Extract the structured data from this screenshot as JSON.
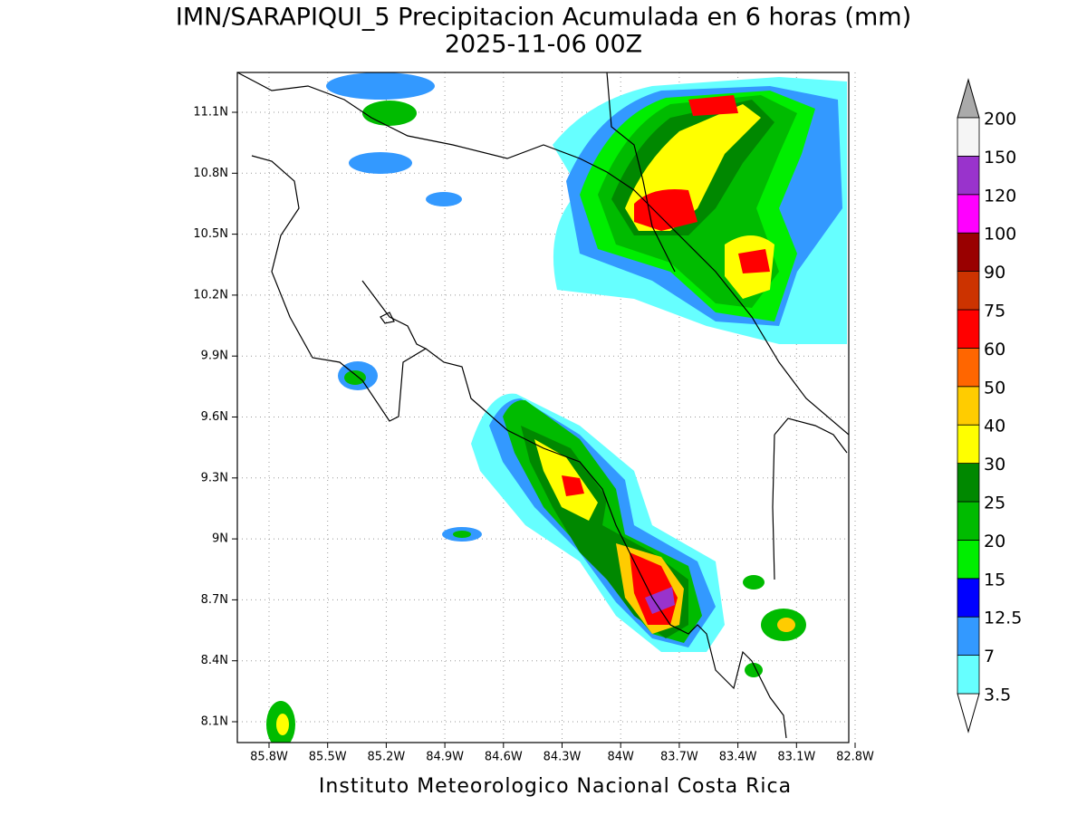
{
  "header": {
    "title": "IMN/SARAPIQUI_5 Precipitacion Acumulada en 6 horas (mm)",
    "subtitle": "2025-11-06 00Z"
  },
  "map": {
    "lon_labels": [
      "85.8W",
      "85.5W",
      "85.2W",
      "84.9W",
      "84.6W",
      "84.3W",
      "84W",
      "83.7W",
      "83.4W",
      "83.1W",
      "82.8W"
    ],
    "lat_labels": [
      "8.1N",
      "8.4N",
      "8.7N",
      "9N",
      "9.3N",
      "9.6N",
      "9.9N",
      "10.2N",
      "10.5N",
      "10.8N",
      "11.1N"
    ]
  },
  "colorbar": {
    "levels": [
      "3.5",
      "7",
      "12.5",
      "15",
      "20",
      "25",
      "30",
      "40",
      "50",
      "60",
      "75",
      "90",
      "100",
      "120",
      "150",
      "200"
    ],
    "colors": [
      "#66ffff",
      "#3399ff",
      "#0000ff",
      "#00ee00",
      "#00bb00",
      "#008800",
      "#ffff00",
      "#ffcc00",
      "#ff6600",
      "#ff0000",
      "#cc3300",
      "#990000",
      "#ff00ff",
      "#9933cc",
      "#f5f5f5"
    ],
    "below_color": "#ffffff",
    "above_color": "#aaaaaa"
  },
  "footer": "Instituto Meteorologico Nacional Costa Rica"
}
